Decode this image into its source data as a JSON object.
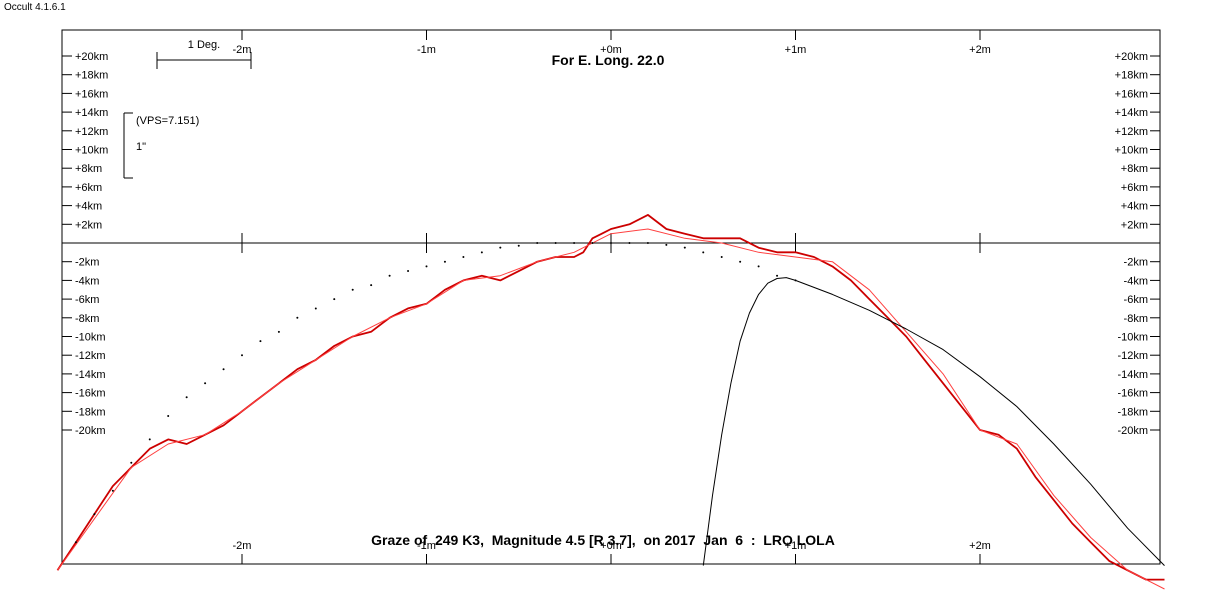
{
  "app": {
    "title": "Occult 4.1.6.1"
  },
  "chart_data": {
    "type": "line",
    "title": "For E. Long. 22.0",
    "subtitle": "Graze of  249 K3,  Magnitude 4.5 [R 3.7],  on 2017  Jan  6  :  LRO LOLA",
    "x_unit": "minutes",
    "x_tick_labels": [
      "-2m",
      "-1m",
      "+0m",
      "+1m",
      "+2m"
    ],
    "x_tick_values": [
      -2,
      -1,
      0,
      1,
      2
    ],
    "xlim": [
      -3.0,
      3.0
    ],
    "y_unit": "km",
    "y_tick_labels_upper": [
      "+20km",
      "+18km",
      "+16km",
      "+14km",
      "+12km",
      "+10km",
      "+8km",
      "+6km",
      "+4km",
      "+2km"
    ],
    "y_tick_values_upper": [
      20,
      18,
      16,
      14,
      12,
      10,
      8,
      6,
      4,
      2
    ],
    "y_tick_labels_lower": [
      "-2km",
      "-4km",
      "-6km",
      "-8km",
      "-10km",
      "-12km",
      "-14km",
      "-16km",
      "-18km",
      "-20km"
    ],
    "y_tick_values_lower": [
      -2,
      -4,
      -6,
      -8,
      -10,
      -12,
      -14,
      -16,
      -18,
      -20
    ],
    "ylim": [
      -34.5,
      23
    ],
    "scale_bar": {
      "label": "1 Deg."
    },
    "vertical_scale": {
      "label": "(VPS=7.151)",
      "sub_label": "1\""
    },
    "series": [
      {
        "role": "limb profile (LRO LOLA)",
        "color": "#cc0000",
        "x": [
          -3.0,
          -2.9,
          -2.8,
          -2.7,
          -2.6,
          -2.5,
          -2.4,
          -2.3,
          -2.2,
          -2.1,
          -2.0,
          -1.9,
          -1.8,
          -1.7,
          -1.6,
          -1.5,
          -1.4,
          -1.3,
          -1.2,
          -1.1,
          -1.0,
          -0.9,
          -0.8,
          -0.7,
          -0.6,
          -0.5,
          -0.4,
          -0.3,
          -0.2,
          -0.15,
          -0.1,
          -0.05,
          0.0,
          0.1,
          0.2,
          0.3,
          0.4,
          0.5,
          0.6,
          0.7,
          0.8,
          0.9,
          1.0,
          1.1,
          1.2,
          1.3,
          1.4,
          1.5,
          1.6,
          1.7,
          1.8,
          1.9,
          2.0,
          2.1,
          2.2,
          2.3,
          2.4,
          2.5,
          2.6,
          2.7,
          2.8,
          2.9,
          3.0
        ],
        "y": [
          -35,
          -32,
          -29,
          -26,
          -24,
          -22,
          -21,
          -21.5,
          -20.5,
          -19.5,
          -18,
          -16.5,
          -15,
          -13.5,
          -12.5,
          -11,
          -10,
          -9.5,
          -8,
          -7,
          -6.5,
          -5,
          -4,
          -3.5,
          -4,
          -3,
          -2,
          -1.5,
          -1.5,
          -1,
          0.5,
          1,
          1.5,
          2,
          3,
          1.5,
          1,
          0.5,
          0.5,
          0.5,
          -0.5,
          -1,
          -1,
          -1.5,
          -2.5,
          -4,
          -6,
          -8,
          -10,
          -12.5,
          -15,
          -17.5,
          -20,
          -20.5,
          -22,
          -25,
          -27.5,
          -30,
          -32,
          -34,
          -35,
          -36,
          -36
        ]
      },
      {
        "role": "smoothed limb profile",
        "color": "#ff4040",
        "x": [
          -3.0,
          -2.8,
          -2.6,
          -2.4,
          -2.2,
          -2.0,
          -1.8,
          -1.6,
          -1.4,
          -1.2,
          -1.0,
          -0.8,
          -0.6,
          -0.4,
          -0.2,
          0.0,
          0.2,
          0.4,
          0.6,
          0.8,
          1.0,
          1.2,
          1.4,
          1.6,
          1.8,
          2.0,
          2.2,
          2.4,
          2.6,
          2.8,
          3.0
        ],
        "y": [
          -35,
          -29.5,
          -24,
          -21.5,
          -20.5,
          -18,
          -15,
          -12.5,
          -10,
          -8,
          -6.5,
          -4,
          -3.5,
          -2,
          -1,
          1,
          1.5,
          0.5,
          0,
          -1,
          -1.5,
          -2,
          -5,
          -9.5,
          -14,
          -20,
          -21.5,
          -27,
          -31.5,
          -35,
          -37
        ]
      },
      {
        "role": "mean limb (dotted)",
        "color": "#000000",
        "style": "dotted",
        "x": [
          -2.9,
          -2.8,
          -2.7,
          -2.6,
          -2.5,
          -2.4,
          -2.3,
          -2.2,
          -2.1,
          -2.0,
          -1.9,
          -1.8,
          -1.7,
          -1.6,
          -1.5,
          -1.4,
          -1.3,
          -1.2,
          -1.1,
          -1.0,
          -0.9,
          -0.8,
          -0.7,
          -0.6,
          -0.5,
          -0.4,
          -0.3,
          -0.2,
          -0.1,
          0.0,
          0.1,
          0.2,
          0.3,
          0.4,
          0.5,
          0.6,
          0.7,
          0.8,
          0.9,
          1.0
        ],
        "y": [
          -32,
          -29,
          -26.5,
          -23.5,
          -21,
          -18.5,
          -16.5,
          -15,
          -13.5,
          -12,
          -10.5,
          -9.5,
          -8,
          -7,
          -6,
          -5,
          -4.5,
          -3.5,
          -3,
          -2.5,
          -2,
          -1.5,
          -1,
          -0.5,
          -0.3,
          0,
          0,
          0,
          0,
          0,
          0,
          0,
          -0.2,
          -0.5,
          -1,
          -1.5,
          -2,
          -2.5,
          -3.5,
          -4
        ]
      },
      {
        "role": "star track (graze line)",
        "color": "#000000",
        "x": [
          0.5,
          0.55,
          0.6,
          0.65,
          0.7,
          0.75,
          0.8,
          0.85,
          0.9,
          0.95,
          1.0,
          1.2,
          1.4,
          1.6,
          1.8,
          2.0,
          2.2,
          2.4,
          2.6,
          2.8,
          3.0
        ],
        "y": [
          -34.5,
          -27,
          -20.5,
          -15,
          -10.5,
          -7.5,
          -5.5,
          -4.3,
          -3.8,
          -3.7,
          -4.0,
          -5.5,
          -7.2,
          -9.2,
          -11.4,
          -14.3,
          -17.5,
          -21.5,
          -25.8,
          -30.5,
          -34.5
        ]
      }
    ],
    "grid": false,
    "legend": "none"
  }
}
